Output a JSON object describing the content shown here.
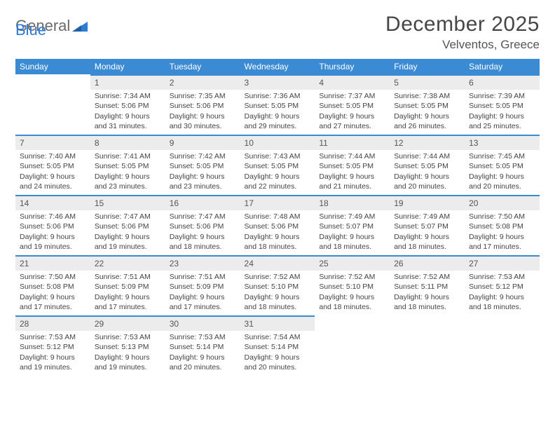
{
  "logo": {
    "text1": "General",
    "text2": "Blue"
  },
  "title": "December 2025",
  "location": "Velventos, Greece",
  "colors": {
    "header_bg": "#3b8bd4",
    "header_text": "#ffffff",
    "daynum_bg": "#ececec",
    "daynum_border": "#3b8bd4",
    "body_text": "#444444",
    "title_text": "#464646",
    "logo_gray": "#6a6a6a",
    "logo_blue": "#2b7cd3"
  },
  "weekdays": [
    "Sunday",
    "Monday",
    "Tuesday",
    "Wednesday",
    "Thursday",
    "Friday",
    "Saturday"
  ],
  "weeks": [
    [
      {
        "blank": true
      },
      {
        "n": "1",
        "sr": "7:34 AM",
        "ss": "5:06 PM",
        "dl": "9 hours and 31 minutes."
      },
      {
        "n": "2",
        "sr": "7:35 AM",
        "ss": "5:06 PM",
        "dl": "9 hours and 30 minutes."
      },
      {
        "n": "3",
        "sr": "7:36 AM",
        "ss": "5:05 PM",
        "dl": "9 hours and 29 minutes."
      },
      {
        "n": "4",
        "sr": "7:37 AM",
        "ss": "5:05 PM",
        "dl": "9 hours and 27 minutes."
      },
      {
        "n": "5",
        "sr": "7:38 AM",
        "ss": "5:05 PM",
        "dl": "9 hours and 26 minutes."
      },
      {
        "n": "6",
        "sr": "7:39 AM",
        "ss": "5:05 PM",
        "dl": "9 hours and 25 minutes."
      }
    ],
    [
      {
        "n": "7",
        "sr": "7:40 AM",
        "ss": "5:05 PM",
        "dl": "9 hours and 24 minutes."
      },
      {
        "n": "8",
        "sr": "7:41 AM",
        "ss": "5:05 PM",
        "dl": "9 hours and 23 minutes."
      },
      {
        "n": "9",
        "sr": "7:42 AM",
        "ss": "5:05 PM",
        "dl": "9 hours and 23 minutes."
      },
      {
        "n": "10",
        "sr": "7:43 AM",
        "ss": "5:05 PM",
        "dl": "9 hours and 22 minutes."
      },
      {
        "n": "11",
        "sr": "7:44 AM",
        "ss": "5:05 PM",
        "dl": "9 hours and 21 minutes."
      },
      {
        "n": "12",
        "sr": "7:44 AM",
        "ss": "5:05 PM",
        "dl": "9 hours and 20 minutes."
      },
      {
        "n": "13",
        "sr": "7:45 AM",
        "ss": "5:05 PM",
        "dl": "9 hours and 20 minutes."
      }
    ],
    [
      {
        "n": "14",
        "sr": "7:46 AM",
        "ss": "5:06 PM",
        "dl": "9 hours and 19 minutes."
      },
      {
        "n": "15",
        "sr": "7:47 AM",
        "ss": "5:06 PM",
        "dl": "9 hours and 19 minutes."
      },
      {
        "n": "16",
        "sr": "7:47 AM",
        "ss": "5:06 PM",
        "dl": "9 hours and 18 minutes."
      },
      {
        "n": "17",
        "sr": "7:48 AM",
        "ss": "5:06 PM",
        "dl": "9 hours and 18 minutes."
      },
      {
        "n": "18",
        "sr": "7:49 AM",
        "ss": "5:07 PM",
        "dl": "9 hours and 18 minutes."
      },
      {
        "n": "19",
        "sr": "7:49 AM",
        "ss": "5:07 PM",
        "dl": "9 hours and 18 minutes."
      },
      {
        "n": "20",
        "sr": "7:50 AM",
        "ss": "5:08 PM",
        "dl": "9 hours and 17 minutes."
      }
    ],
    [
      {
        "n": "21",
        "sr": "7:50 AM",
        "ss": "5:08 PM",
        "dl": "9 hours and 17 minutes."
      },
      {
        "n": "22",
        "sr": "7:51 AM",
        "ss": "5:09 PM",
        "dl": "9 hours and 17 minutes."
      },
      {
        "n": "23",
        "sr": "7:51 AM",
        "ss": "5:09 PM",
        "dl": "9 hours and 17 minutes."
      },
      {
        "n": "24",
        "sr": "7:52 AM",
        "ss": "5:10 PM",
        "dl": "9 hours and 18 minutes."
      },
      {
        "n": "25",
        "sr": "7:52 AM",
        "ss": "5:10 PM",
        "dl": "9 hours and 18 minutes."
      },
      {
        "n": "26",
        "sr": "7:52 AM",
        "ss": "5:11 PM",
        "dl": "9 hours and 18 minutes."
      },
      {
        "n": "27",
        "sr": "7:53 AM",
        "ss": "5:12 PM",
        "dl": "9 hours and 18 minutes."
      }
    ],
    [
      {
        "n": "28",
        "sr": "7:53 AM",
        "ss": "5:12 PM",
        "dl": "9 hours and 19 minutes."
      },
      {
        "n": "29",
        "sr": "7:53 AM",
        "ss": "5:13 PM",
        "dl": "9 hours and 19 minutes."
      },
      {
        "n": "30",
        "sr": "7:53 AM",
        "ss": "5:14 PM",
        "dl": "9 hours and 20 minutes."
      },
      {
        "n": "31",
        "sr": "7:54 AM",
        "ss": "5:14 PM",
        "dl": "9 hours and 20 minutes."
      },
      {
        "blank": true
      },
      {
        "blank": true
      },
      {
        "blank": true
      }
    ]
  ],
  "labels": {
    "sunrise": "Sunrise: ",
    "sunset": "Sunset: ",
    "daylight": "Daylight: "
  }
}
